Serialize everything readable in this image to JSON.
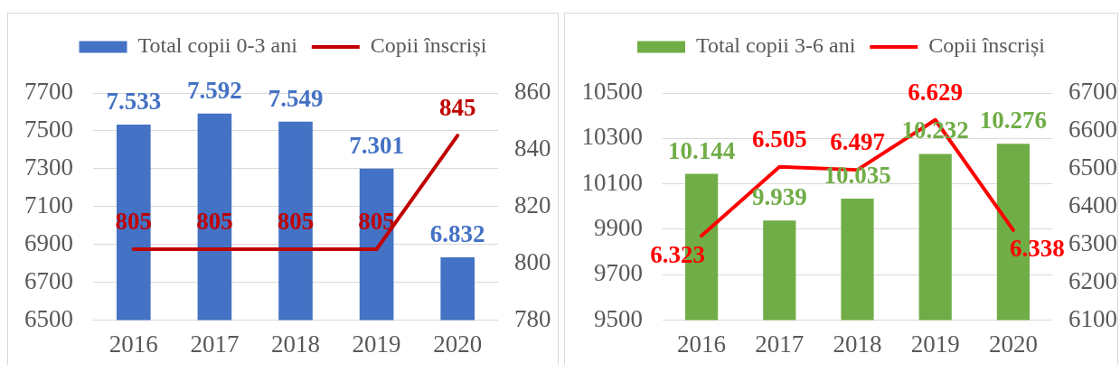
{
  "chart_data": [
    {
      "type": "bar",
      "categories": [
        "2016",
        "2017",
        "2018",
        "2019",
        "2020"
      ],
      "series": [
        {
          "name": "Total copii 0-3 ani",
          "type": "bar",
          "color": "#4472c4",
          "values": [
            7533,
            7592,
            7549,
            7301,
            6832
          ],
          "value_labels": [
            "7.533",
            "7.592",
            "7.549",
            "7.301",
            "6.832"
          ]
        },
        {
          "name": "Copii înscriși",
          "type": "line",
          "axis": "y2",
          "color": "#c00000",
          "values": [
            805,
            805,
            805,
            805,
            845
          ],
          "value_labels": [
            "805",
            "805",
            "805",
            "805",
            "845"
          ]
        }
      ],
      "ylim": [
        6500,
        7700
      ],
      "yticks": [
        6500,
        6700,
        6900,
        7100,
        7300,
        7500,
        7700
      ],
      "y2lim": [
        780,
        860
      ],
      "y2ticks": [
        780,
        800,
        820,
        840,
        860
      ],
      "grid": "y",
      "legend": "top",
      "marker": "none"
    },
    {
      "type": "bar",
      "categories": [
        "2016",
        "2017",
        "2018",
        "2019",
        "2020"
      ],
      "series": [
        {
          "name": "Total copii 3-6 ani",
          "type": "bar",
          "color": "#70ad47",
          "values": [
            10144,
            9939,
            10035,
            10232,
            10276
          ],
          "value_labels": [
            "10.144",
            "9.939",
            "10.035",
            "10.232",
            "10.276"
          ]
        },
        {
          "name": "Copii înscriși",
          "type": "line",
          "axis": "y2",
          "color": "#ff0000",
          "values": [
            6323,
            6505,
            6497,
            6629,
            6338
          ],
          "value_labels": [
            "6.323",
            "6.505",
            "6.497",
            "6.629",
            "6.338"
          ]
        }
      ],
      "ylim": [
        9500,
        10500
      ],
      "yticks": [
        9500,
        9700,
        9900,
        10100,
        10300,
        10500
      ],
      "y2lim": [
        6100,
        6700
      ],
      "y2ticks": [
        6100,
        6200,
        6300,
        6400,
        6500,
        6600,
        6700
      ],
      "grid": "y",
      "legend": "top",
      "marker": "none"
    }
  ]
}
